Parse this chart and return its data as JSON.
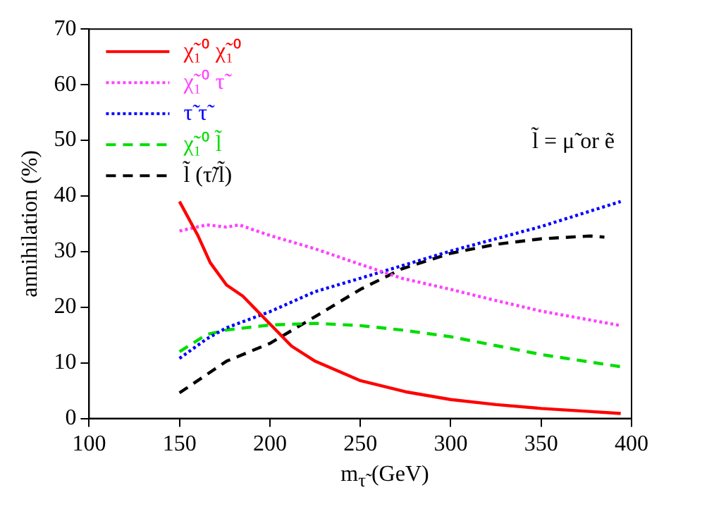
{
  "chart_data": {
    "type": "line",
    "ylabel": "annihilation (%)",
    "xlabel": "m$_{τ̃}$ (GeV)",
    "xlim": [
      100,
      400
    ],
    "xticks": [
      100,
      150,
      200,
      250,
      300,
      350,
      400
    ],
    "ylim": [
      0,
      70
    ],
    "yticks": [
      0,
      10,
      20,
      30,
      40,
      50,
      60,
      70
    ],
    "grid": false,
    "legend": "top left",
    "marker": "none",
    "annotations": [
      "l̃ = μ̃ or ẽ"
    ],
    "series": [
      {
        "name": "χ̃₁⁰ χ̃₁⁰",
        "color": "#ff0000",
        "line_style": "solid",
        "x": [
          150,
          160,
          167,
          176,
          185,
          200,
          212,
          225,
          250,
          275,
          300,
          325,
          350,
          375,
          394
        ],
        "values": [
          39,
          33,
          28,
          24,
          22,
          17,
          13,
          10.3,
          6.8,
          4.8,
          3.4,
          2.5,
          1.8,
          1.3,
          0.9
        ]
      },
      {
        "name": "χ̃₁⁰ τ̃",
        "color": "#ff40ff",
        "line_style": "dotted",
        "x": [
          150,
          165,
          176,
          183,
          200,
          225,
          250,
          273,
          300,
          325,
          350,
          394
        ],
        "values": [
          33.7,
          34.8,
          34.4,
          34.8,
          32.9,
          30.5,
          27.7,
          25.2,
          23.2,
          21.2,
          19.3,
          16.7
        ]
      },
      {
        "name": "τ̃ τ̃",
        "color": "#0000ff",
        "line_style": "dotted",
        "x": [
          150,
          165,
          176,
          200,
          225,
          250,
          300,
          350,
          394
        ],
        "values": [
          10.8,
          14.3,
          16.3,
          19.2,
          22.8,
          25.2,
          30.1,
          34.5,
          39
        ]
      },
      {
        "name": "χ̃₁⁰ l̃",
        "color": "#00dd00",
        "line_style": "dashed",
        "x": [
          150,
          165,
          176,
          200,
          225,
          250,
          273,
          300,
          325,
          350,
          394
        ],
        "values": [
          12,
          15.1,
          15.9,
          16.8,
          17.1,
          16.7,
          15.9,
          14.7,
          13.1,
          11.5,
          9.3
        ]
      },
      {
        "name": "l̃ (τ̃/l̃)",
        "color": "#000000",
        "line_style": "dashed",
        "x": [
          150,
          176,
          200,
          225,
          250,
          273,
          300,
          325,
          350,
          377,
          385
        ],
        "values": [
          4.6,
          10.3,
          13.5,
          18.3,
          23.2,
          26.9,
          29.7,
          31.3,
          32.3,
          32.8,
          32.6
        ]
      }
    ]
  }
}
